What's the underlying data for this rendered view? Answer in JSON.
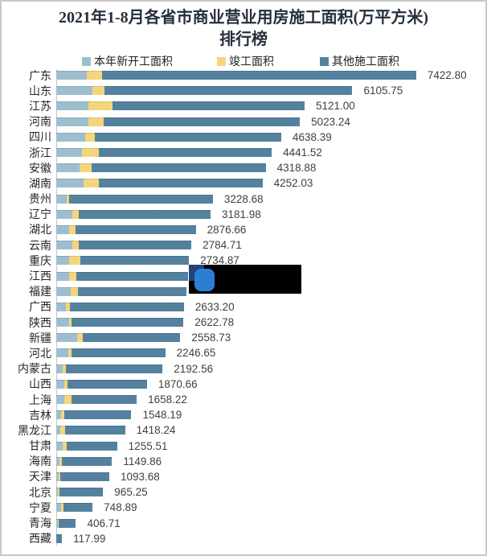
{
  "title": {
    "line1": "2021年1-8月各省市商业营业用房施工面积(万平方米)",
    "line2": "排行榜"
  },
  "legend": [
    {
      "label": "本年新开工面积",
      "color": "#9dbed0"
    },
    {
      "label": "竣工面积",
      "color": "#f5d57b"
    },
    {
      "label": "其他施工面积",
      "color": "#54829e"
    }
  ],
  "colors": {
    "new_start": "#9dbed0",
    "completed": "#f5d57b",
    "other": "#54829e",
    "axis": "#c6c6c6",
    "frame": "#c9c9c9",
    "value_text": "#404040",
    "redaction_box": "#000000",
    "logo_navy": "#25417e",
    "logo_blue": "#2b7fd2"
  },
  "redaction": {
    "note": "black censor box with blue logo covering the value labels of 江西 and 福建"
  },
  "chart_data": {
    "type": "bar",
    "orientation": "horizontal",
    "stacked": true,
    "unit": "万平方米",
    "title": "2021年1-8月各省市商业营业用房施工面积(万平方米) 排行榜",
    "series_names": [
      "本年新开工面积",
      "竣工面积",
      "其他施工面积"
    ],
    "xlim": [
      0,
      7500
    ],
    "legend_position": "top",
    "grid": false,
    "segment_note": "seg_new and seg_done are estimated from bar pixels; value for 江西/福建 estimated (labels hidden by black box)",
    "rows": [
      {
        "name": "广东",
        "value": 7422.8,
        "value_label": "7422.80",
        "seg_new": 630,
        "seg_done": 315
      },
      {
        "name": "山东",
        "value": 6105.75,
        "value_label": "6105.75",
        "seg_new": 750,
        "seg_done": 240
      },
      {
        "name": "江苏",
        "value": 5121.0,
        "value_label": "5121.00",
        "seg_new": 668,
        "seg_done": 497
      },
      {
        "name": "河南",
        "value": 5023.24,
        "value_label": "5023.24",
        "seg_new": 668,
        "seg_done": 305
      },
      {
        "name": "四川",
        "value": 4638.39,
        "value_label": "4638.39",
        "seg_new": 601,
        "seg_done": 189
      },
      {
        "name": "浙江",
        "value": 4441.52,
        "value_label": "4441.52",
        "seg_new": 530,
        "seg_done": 348
      },
      {
        "name": "安徽",
        "value": 4318.88,
        "value_label": "4318.88",
        "seg_new": 486,
        "seg_done": 249
      },
      {
        "name": "湖南",
        "value": 4252.03,
        "value_label": "4252.03",
        "seg_new": 558,
        "seg_done": 320
      },
      {
        "name": "贵州",
        "value": 3228.68,
        "value_label": "3228.68",
        "seg_new": 215,
        "seg_done": 45
      },
      {
        "name": "辽宁",
        "value": 3181.98,
        "value_label": "3181.98",
        "seg_new": 336,
        "seg_done": 123
      },
      {
        "name": "湖北",
        "value": 2876.66,
        "value_label": "2876.66",
        "seg_new": 270,
        "seg_done": 133
      },
      {
        "name": "云南",
        "value": 2784.71,
        "value_label": "2784.71",
        "seg_new": 326,
        "seg_done": 138
      },
      {
        "name": "重庆",
        "value": 2734.87,
        "value_label": "2734.87",
        "seg_new": 270,
        "seg_done": 232
      },
      {
        "name": "江西",
        "value": 2720,
        "value_label": "",
        "seg_new": 270,
        "seg_done": 139,
        "label_hidden_by_redaction": true
      },
      {
        "name": "福建",
        "value": 2690,
        "value_label": "",
        "seg_new": 293,
        "seg_done": 154,
        "label_hidden_by_redaction": true
      },
      {
        "name": "广西",
        "value": 2633.2,
        "value_label": "2633.20",
        "seg_new": 204,
        "seg_done": 78
      },
      {
        "name": "陕西",
        "value": 2622.78,
        "value_label": "2622.78",
        "seg_new": 260,
        "seg_done": 55
      },
      {
        "name": "新疆",
        "value": 2558.73,
        "value_label": "2558.73",
        "seg_new": 426,
        "seg_done": 121
      },
      {
        "name": "河北",
        "value": 2246.65,
        "value_label": "2246.65",
        "seg_new": 244,
        "seg_done": 76
      },
      {
        "name": "内蒙古",
        "value": 2192.56,
        "value_label": "2192.56",
        "seg_new": 128,
        "seg_done": 76
      },
      {
        "name": "山西",
        "value": 1870.66,
        "value_label": "1870.66",
        "seg_new": 161,
        "seg_done": 76
      },
      {
        "name": "上海",
        "value": 1658.22,
        "value_label": "1658.22",
        "seg_new": 161,
        "seg_done": 159
      },
      {
        "name": "吉林",
        "value": 1548.19,
        "value_label": "1548.19",
        "seg_new": 104,
        "seg_done": 66
      },
      {
        "name": "黑龙江",
        "value": 1418.24,
        "value_label": "1418.24",
        "seg_new": 88,
        "seg_done": 94
      },
      {
        "name": "甘肃",
        "value": 1255.51,
        "value_label": "1255.51",
        "seg_new": 128,
        "seg_done": 88
      },
      {
        "name": "海南",
        "value": 1149.86,
        "value_label": "1149.86",
        "seg_new": 71,
        "seg_done": 45
      },
      {
        "name": "天津",
        "value": 1093.68,
        "value_label": "1093.68",
        "seg_new": 50,
        "seg_done": 38
      },
      {
        "name": "北京",
        "value": 965.25,
        "value_label": "965.25",
        "seg_new": 25,
        "seg_done": 41
      },
      {
        "name": "宁夏",
        "value": 748.89,
        "value_label": "748.89",
        "seg_new": 94,
        "seg_done": 55
      },
      {
        "name": "青海",
        "value": 406.71,
        "value_label": "406.71",
        "seg_new": 35,
        "seg_done": 12
      },
      {
        "name": "西藏",
        "value": 117.99,
        "value_label": "117.99",
        "seg_new": 0,
        "seg_done": 0
      }
    ]
  }
}
